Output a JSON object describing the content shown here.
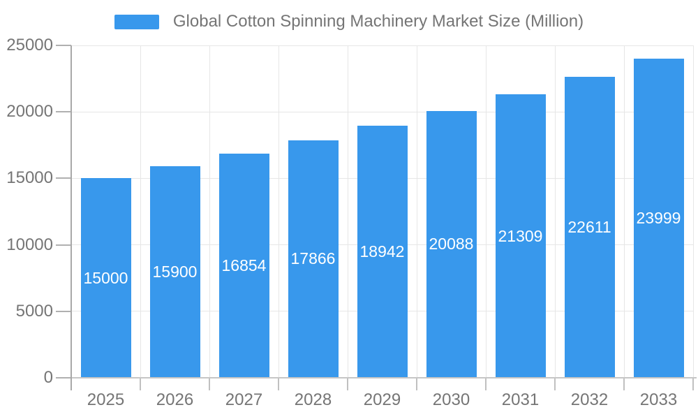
{
  "chart_data": {
    "type": "bar",
    "title": "Global Cotton Spinning Machinery Market Size (Million)",
    "legend": [
      "Global Cotton Spinning Machinery Market Size (Million)"
    ],
    "legend_position": "top-center",
    "categories": [
      "2025",
      "2026",
      "2027",
      "2028",
      "2029",
      "2030",
      "2031",
      "2032",
      "2033"
    ],
    "values": [
      15000,
      15900,
      16854,
      17866,
      18942,
      20088,
      21309,
      22611,
      23999
    ],
    "xlabel": "",
    "ylabel": "",
    "ylim": [
      0,
      25000
    ],
    "y_ticks": [
      0,
      5000,
      10000,
      15000,
      20000,
      25000
    ],
    "grid": "horizontal and vertical light gray gridlines",
    "value_labels": "white, centered inside each bar",
    "colors": {
      "bar": "#3898ec",
      "bar_label_text": "#ffffff",
      "axis_text": "#757575",
      "legend_text": "#757575",
      "gridline": "#e6e6e6",
      "y_axis_line": "#a8a8a8",
      "x_axis_line": "#c6c6c6",
      "background": "#ffffff"
    }
  }
}
